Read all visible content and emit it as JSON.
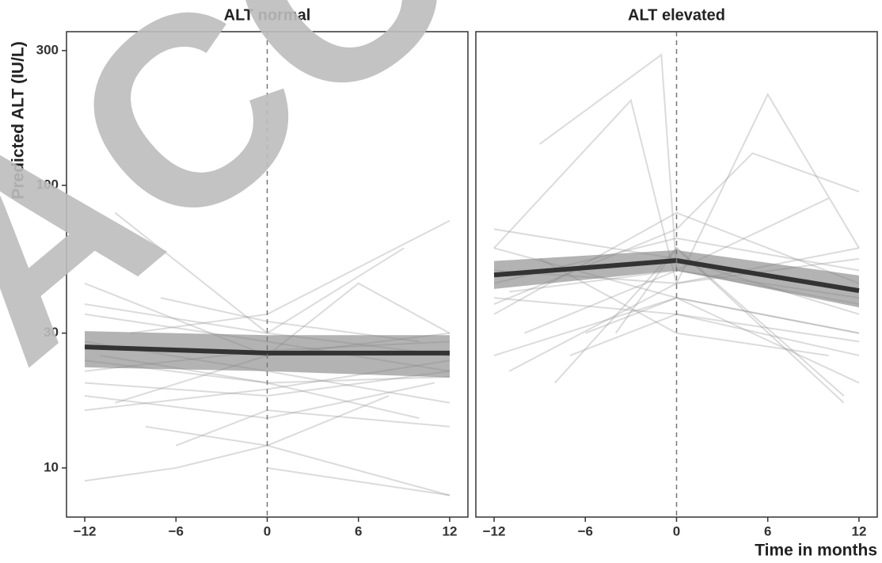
{
  "watermark": "ACC",
  "chart_data": [
    {
      "type": "line",
      "title": "ALT normal",
      "y_label": "Predicted ALT (IU/L)",
      "xlim": [
        -13.2,
        13.2
      ],
      "xticks": [
        {
          "value": -12,
          "label": "−12"
        },
        {
          "value": -6,
          "label": "−6"
        },
        0,
        6,
        12
      ],
      "ylim": [
        6.7,
        350
      ],
      "yticks": [
        10,
        30,
        100,
        300
      ],
      "y_scale": "log",
      "vline": 0,
      "line_color": "#999999",
      "line_opacity": 0.35,
      "individual": [
        {
          "x": [
            -12,
            -6,
            0,
            12
          ],
          "values": [
            9,
            10,
            12,
            8
          ]
        },
        {
          "x": [
            -12,
            0,
            12
          ],
          "values": [
            45,
            25,
            30
          ]
        },
        {
          "x": [
            -12,
            0,
            12
          ],
          "values": [
            20,
            18,
            22
          ]
        },
        {
          "x": [
            -10,
            0,
            9
          ],
          "values": [
            80,
            30,
            60
          ]
        },
        {
          "x": [
            -12,
            0,
            12
          ],
          "values": [
            35,
            28,
            22
          ]
        },
        {
          "x": [
            -11,
            0,
            10
          ],
          "values": [
            25,
            20,
            15
          ]
        },
        {
          "x": [
            -12,
            0,
            11
          ],
          "values": [
            18,
            15,
            20
          ]
        },
        {
          "x": [
            -9,
            0,
            12
          ],
          "values": [
            30,
            35,
            75
          ]
        },
        {
          "x": [
            -12,
            0,
            12
          ],
          "values": [
            22,
            26,
            28
          ]
        },
        {
          "x": [
            -8,
            0,
            8
          ],
          "values": [
            14,
            12,
            18
          ]
        },
        {
          "x": [
            -12,
            0,
            12
          ],
          "values": [
            28,
            22,
            17
          ]
        },
        {
          "x": [
            -10,
            0,
            6,
            12
          ],
          "values": [
            17,
            25,
            45,
            30
          ]
        },
        {
          "x": [
            -12,
            0,
            12
          ],
          "values": [
            38,
            30,
            25
          ]
        },
        {
          "x": [
            -6,
            0,
            12
          ],
          "values": [
            12,
            16,
            14
          ]
        },
        {
          "x": [
            -12,
            0,
            12
          ],
          "values": [
            24,
            20,
            21
          ]
        },
        {
          "x": [
            -7,
            0,
            10
          ],
          "values": [
            40,
            33,
            28
          ]
        },
        {
          "x": [
            -12,
            0,
            12
          ],
          "values": [
            16,
            19,
            24
          ]
        },
        {
          "x": [
            0,
            12
          ],
          "values": [
            10,
            8
          ]
        }
      ],
      "mean": {
        "x": [
          -12,
          0,
          12
        ],
        "values": [
          26.8,
          25.5,
          25.5
        ],
        "lower": [
          22.7,
          22,
          20.9
        ],
        "upper": [
          30.5,
          29.5,
          29.5
        ],
        "color": "#333333",
        "band_color": "#808080",
        "band_opacity": 0.6
      }
    },
    {
      "type": "line",
      "title": "ALT elevated",
      "x_label": "Time in months",
      "xlim": [
        -13.2,
        13.2
      ],
      "xticks": [
        {
          "value": -12,
          "label": "−12"
        },
        {
          "value": -6,
          "label": "−6"
        },
        0,
        6,
        12
      ],
      "ylim": [
        6.7,
        350
      ],
      "yticks": [
        10,
        30,
        100,
        300
      ],
      "y_scale": "log",
      "vline": 0,
      "line_color": "#999999",
      "line_opacity": 0.35,
      "individual": [
        {
          "x": [
            -9,
            -1,
            0,
            12
          ],
          "values": [
            140,
            290,
            50,
            40
          ]
        },
        {
          "x": [
            -12,
            -3,
            0,
            12
          ],
          "values": [
            60,
            200,
            45,
            60
          ]
        },
        {
          "x": [
            -12,
            0,
            12
          ],
          "values": [
            25,
            40,
            30
          ]
        },
        {
          "x": [
            -11,
            0,
            6,
            12
          ],
          "values": [
            22,
            45,
            210,
            60
          ]
        },
        {
          "x": [
            -12,
            0,
            12
          ],
          "values": [
            70,
            55,
            35
          ]
        },
        {
          "x": [
            -10,
            0,
            10
          ],
          "values": [
            30,
            50,
            90
          ]
        },
        {
          "x": [
            -12,
            0,
            12
          ],
          "values": [
            40,
            35,
            25
          ]
        },
        {
          "x": [
            -8,
            0,
            11
          ],
          "values": [
            20,
            60,
            18
          ]
        },
        {
          "x": [
            -12,
            0,
            12
          ],
          "values": [
            45,
            65,
            50
          ]
        },
        {
          "x": [
            -6,
            0,
            12
          ],
          "values": [
            30,
            40,
            20
          ]
        },
        {
          "x": [
            -12,
            0,
            12
          ],
          "values": [
            35,
            80,
            45
          ]
        },
        {
          "x": [
            -9,
            0,
            10
          ],
          "values": [
            55,
            30,
            25
          ]
        },
        {
          "x": [
            -12,
            0,
            12
          ],
          "values": [
            50,
            45,
            55
          ]
        },
        {
          "x": [
            -7,
            0,
            12
          ],
          "values": [
            25,
            35,
            28
          ]
        },
        {
          "x": [
            -12,
            0,
            5,
            12
          ],
          "values": [
            38,
            70,
            130,
            95
          ]
        },
        {
          "x": [
            -12,
            0,
            12
          ],
          "values": [
            60,
            40,
            30
          ]
        },
        {
          "x": [
            -4,
            0,
            11
          ],
          "values": [
            30,
            60,
            17
          ]
        },
        {
          "x": [
            -11,
            0,
            12
          ],
          "values": [
            42,
            50,
            38
          ]
        }
      ],
      "mean": {
        "x": [
          -12,
          0,
          12
        ],
        "values": [
          48.2,
          54.2,
          42.4
        ],
        "lower": [
          43,
          50,
          37
        ],
        "upper": [
          54,
          59,
          48
        ],
        "color": "#333333",
        "band_color": "#808080",
        "band_opacity": 0.6
      }
    }
  ]
}
